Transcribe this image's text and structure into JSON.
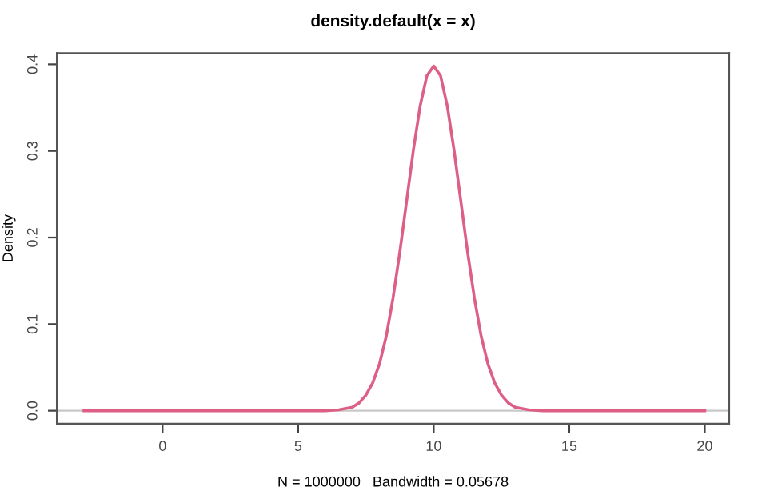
{
  "chart_data": {
    "type": "line",
    "title": "density.default(x = x)",
    "xlabel": "N = 1000000   Bandwidth = 0.05678",
    "ylabel": "Density",
    "x": [
      -2.9,
      0,
      5,
      6,
      6.5,
      7,
      7.25,
      7.5,
      7.75,
      8,
      8.25,
      8.5,
      8.75,
      9,
      9.25,
      9.5,
      9.75,
      10,
      10.25,
      10.5,
      10.75,
      11,
      11.25,
      11.5,
      11.75,
      12,
      12.25,
      12.5,
      12.75,
      13,
      13.5,
      14,
      15,
      20
    ],
    "series": [
      {
        "color": "#dd5f86",
        "values": [
          0,
          0,
          0,
          0,
          0.001,
          0.004,
          0.009,
          0.018,
          0.032,
          0.054,
          0.086,
          0.13,
          0.183,
          0.242,
          0.301,
          0.352,
          0.387,
          0.398,
          0.387,
          0.352,
          0.301,
          0.242,
          0.183,
          0.13,
          0.086,
          0.054,
          0.032,
          0.018,
          0.009,
          0.004,
          0.001,
          0,
          0,
          0
        ]
      }
    ],
    "xlim": [
      -3.9,
      20.9
    ],
    "ylim": [
      -0.015,
      0.413
    ],
    "xticks": [
      0,
      5,
      10,
      15,
      20
    ],
    "yticks": [
      {
        "value": 0,
        "label": "0.0"
      },
      0.1,
      0.2,
      0.3,
      0.4
    ],
    "ref_lines": [
      {
        "axis": "y",
        "value": 0,
        "color": "#c8c8c8"
      }
    ],
    "grid": false,
    "legend": false,
    "marker": "none",
    "line_style": "solid"
  }
}
